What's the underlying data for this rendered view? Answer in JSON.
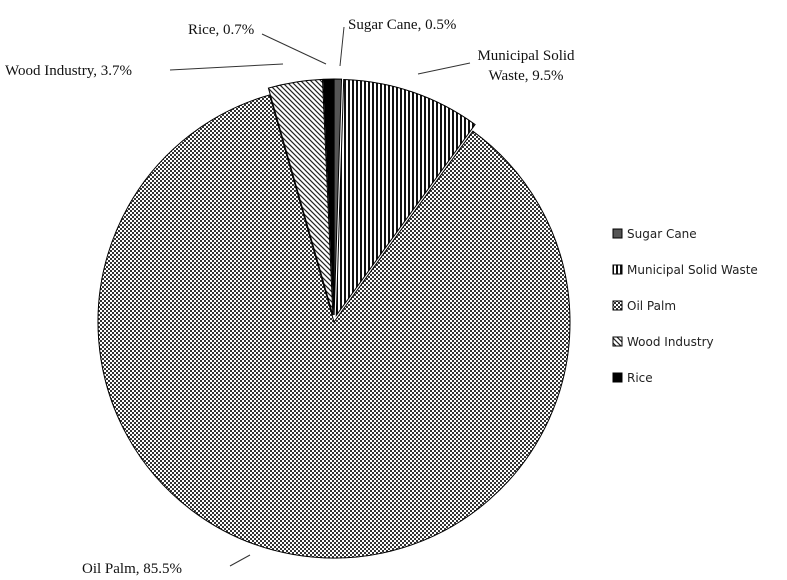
{
  "chart_data": {
    "type": "pie",
    "slices": [
      {
        "name": "Sugar Cane",
        "value": 0.5,
        "label": "Sugar Cane, 0.5%",
        "pattern": "solid-gray",
        "color": "#555555"
      },
      {
        "name": "Municipal Solid Waste",
        "value": 9.5,
        "label_lines": [
          "Municipal Solid",
          "Waste, 9.5%"
        ],
        "pattern": "vertical-stripes",
        "color": "#000000"
      },
      {
        "name": "Oil Palm",
        "value": 85.5,
        "label": "Oil Palm, 85.5%",
        "pattern": "checker",
        "color": "#000000"
      },
      {
        "name": "Wood Industry",
        "value": 3.7,
        "label": "Wood Industry, 3.7%",
        "pattern": "diagonal-stripes",
        "color": "#000000"
      },
      {
        "name": "Rice",
        "value": 0.7,
        "label": "Rice, 0.7%",
        "pattern": "solid-black",
        "color": "#000000"
      }
    ],
    "legend": {
      "placement": "right",
      "entries": [
        "Sugar Cane",
        "Municipal Solid Waste",
        "Oil Palm",
        "Wood Industry",
        "Rice"
      ]
    },
    "exploded": true,
    "start_angle": "top, clockwise"
  }
}
